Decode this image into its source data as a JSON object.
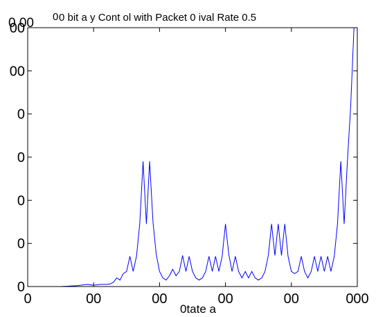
{
  "chart_data": {
    "type": "line",
    "title": "0 bit a y Cont ol with Packet 0   ival Rate 0.5",
    "exponent_label": "0 00",
    "exponent_superscript": "0",
    "xlabel": "0tate a",
    "ylabel": "",
    "x_tick_labels": [
      "0",
      "00",
      "00",
      "00",
      "00",
      "000"
    ],
    "y_tick_labels": [
      "00",
      "00",
      "0",
      "0",
      "0",
      "0",
      "0"
    ],
    "xlim": [
      0,
      1000
    ],
    "ylim": [
      0,
      6
    ],
    "x_ticks": [
      0,
      200,
      400,
      600,
      800,
      1000
    ],
    "y_ticks": [
      6,
      5,
      4,
      3,
      2,
      1,
      0
    ],
    "grid": false,
    "line_color": "#0000ff",
    "series": [
      {
        "x": [
          0,
          100,
          150,
          180,
          200,
          220,
          240,
          250,
          260,
          270,
          280,
          290,
          300,
          310,
          320,
          330,
          340,
          350,
          360,
          370,
          380,
          390,
          400,
          410,
          420,
          430,
          440,
          450,
          460,
          470,
          480,
          490,
          500,
          510,
          520,
          530,
          540,
          550,
          560,
          570,
          580,
          590,
          600,
          610,
          620,
          630,
          640,
          650,
          660,
          670,
          680,
          690,
          700,
          710,
          720,
          730,
          740,
          750,
          760,
          770,
          780,
          790,
          800,
          810,
          820,
          830,
          840,
          850,
          860,
          870,
          880,
          890,
          900,
          910,
          920,
          930,
          940,
          950,
          960,
          970,
          980,
          990,
          1000
        ],
        "y": [
          0,
          0,
          0.02,
          0.05,
          0.03,
          0.05,
          0.05,
          0.06,
          0.1,
          0.2,
          0.15,
          0.3,
          0.35,
          0.7,
          0.35,
          0.7,
          1.45,
          2.9,
          1.45,
          2.9,
          1.5,
          0.75,
          0.35,
          0.2,
          0.15,
          0.25,
          0.4,
          0.25,
          0.35,
          0.72,
          0.35,
          0.7,
          0.35,
          0.2,
          0.15,
          0.2,
          0.35,
          0.7,
          0.35,
          0.7,
          0.35,
          0.7,
          1.45,
          0.75,
          0.35,
          0.7,
          0.35,
          0.2,
          0.35,
          0.2,
          0.35,
          0.2,
          0.15,
          0.2,
          0.35,
          0.72,
          1.45,
          0.72,
          1.45,
          0.72,
          1.45,
          0.7,
          0.35,
          0.3,
          0.35,
          0.7,
          0.35,
          0.2,
          0.35,
          0.7,
          0.35,
          0.7,
          0.35,
          0.7,
          0.35,
          0.7,
          1.45,
          2.9,
          1.45,
          2.9,
          4.2,
          6,
          6
        ]
      }
    ]
  }
}
